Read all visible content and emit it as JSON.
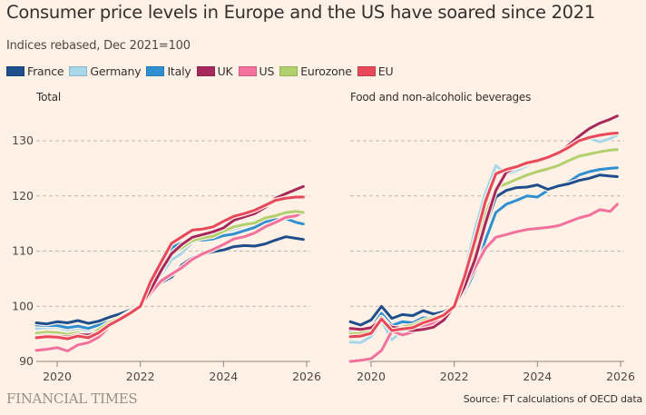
{
  "title": "Consumer price levels in Europe and the US have soared since 2021",
  "subtitle": "Indices rebased, Dec 2021=100",
  "legend": [
    {
      "name": "France",
      "color": "#1f4e8c"
    },
    {
      "name": "Germany",
      "color": "#a6d8ea"
    },
    {
      "name": "Italy",
      "color": "#2f8fd1"
    },
    {
      "name": "UK",
      "color": "#a8285c"
    },
    {
      "name": "US",
      "color": "#f2719d"
    },
    {
      "name": "Eurozone",
      "color": "#b2d06e"
    },
    {
      "name": "EU",
      "color": "#e8485a"
    }
  ],
  "branding": "FINANCIAL TIMES",
  "source": "Source: FT calculations of OECD data",
  "chart_data": [
    {
      "type": "line",
      "title": "Total",
      "xlabel": "",
      "ylabel": "",
      "xlim": [
        2019.5,
        2026.05
      ],
      "ylim": [
        90,
        135
      ],
      "yticks": [
        90,
        100,
        110,
        120,
        130
      ],
      "ytick_labels": [
        "90",
        "100",
        "110",
        "120",
        "130"
      ],
      "xticks": [
        2020,
        2022,
        2024,
        2026
      ],
      "xtick_labels": [
        "2020",
        "2022",
        "2024",
        "2026"
      ],
      "grid": true,
      "x": [
        2019.5,
        2019.75,
        2020.0,
        2020.25,
        2020.5,
        2020.75,
        2021.0,
        2021.25,
        2021.5,
        2021.75,
        2022.0,
        2022.25,
        2022.5,
        2022.75,
        2023.0,
        2023.25,
        2023.5,
        2023.75,
        2024.0,
        2024.25,
        2024.5,
        2024.75,
        2025.0,
        2025.25,
        2025.5,
        2025.75,
        2025.92
      ],
      "series": [
        {
          "name": "France",
          "values": [
            97.0,
            96.8,
            97.2,
            97.0,
            97.4,
            96.9,
            97.3,
            98.0,
            98.6,
            99.3,
            100.0,
            102.2,
            104.3,
            105.3,
            107.5,
            108.8,
            109.4,
            109.9,
            110.2,
            110.8,
            111.0,
            110.9,
            111.3,
            112.0,
            112.6,
            112.3,
            112.1
          ]
        },
        {
          "name": "Germany",
          "values": [
            96.0,
            96.1,
            96.2,
            95.7,
            96.0,
            95.6,
            96.4,
            97.4,
            98.2,
            99.0,
            100.0,
            103.6,
            105.6,
            108.4,
            109.6,
            111.6,
            112.2,
            112.7,
            113.4,
            114.0,
            114.6,
            114.8,
            115.6,
            116.0,
            116.8,
            117.0,
            117.1
          ]
        },
        {
          "name": "Italy",
          "values": [
            96.6,
            96.5,
            96.5,
            96.1,
            96.4,
            96.0,
            96.6,
            97.6,
            98.4,
            99.2,
            100.0,
            103.3,
            106.0,
            110.6,
            111.5,
            111.9,
            112.0,
            112.2,
            112.8,
            113.1,
            113.7,
            114.3,
            115.3,
            115.7,
            115.9,
            115.2,
            114.9
          ]
        },
        {
          "name": "UK",
          "values": [
            94.5,
            94.7,
            94.6,
            94.4,
            94.8,
            94.8,
            95.2,
            96.5,
            97.6,
            98.8,
            100.0,
            103.0,
            106.5,
            109.5,
            111.2,
            112.5,
            113.0,
            113.5,
            114.2,
            115.6,
            116.2,
            116.8,
            117.9,
            119.6,
            120.4,
            121.2,
            121.7
          ]
        },
        {
          "name": "US",
          "values": [
            92.0,
            92.2,
            92.5,
            91.9,
            93.0,
            93.4,
            94.4,
            96.3,
            97.6,
            98.6,
            100.0,
            102.4,
            104.6,
            105.8,
            107.0,
            108.5,
            109.5,
            110.3,
            111.2,
            112.2,
            112.6,
            113.3,
            114.4,
            115.2,
            116.1,
            116.4,
            117.1
          ]
        },
        {
          "name": "Eurozone",
          "values": [
            95.1,
            95.3,
            95.2,
            94.9,
            95.2,
            94.7,
            95.8,
            97.0,
            97.9,
            99.0,
            100.0,
            103.8,
            106.9,
            109.6,
            110.6,
            111.9,
            112.4,
            112.7,
            113.6,
            114.4,
            114.8,
            115.1,
            116.0,
            116.4,
            117.0,
            117.2,
            117.0
          ]
        },
        {
          "name": "EU",
          "values": [
            94.3,
            94.5,
            94.4,
            94.1,
            94.6,
            94.3,
            95.2,
            96.6,
            97.6,
            98.7,
            100.0,
            104.5,
            108.0,
            111.4,
            112.6,
            113.8,
            114.0,
            114.4,
            115.4,
            116.3,
            116.8,
            117.4,
            118.3,
            119.2,
            119.6,
            119.8,
            119.8
          ]
        }
      ]
    },
    {
      "type": "line",
      "title": "Food and non-alcoholic beverages",
      "xlabel": "",
      "ylabel": "",
      "xlim": [
        2019.5,
        2026.05
      ],
      "ylim": [
        90,
        135
      ],
      "yticks": [
        90,
        100,
        110,
        120,
        130
      ],
      "xticks": [
        2020,
        2022,
        2024,
        2026
      ],
      "xtick_labels": [
        "2020",
        "2022",
        "2024",
        "2026"
      ],
      "grid": true,
      "x": [
        2019.5,
        2019.75,
        2020.0,
        2020.25,
        2020.5,
        2020.75,
        2021.0,
        2021.25,
        2021.5,
        2021.75,
        2022.0,
        2022.25,
        2022.5,
        2022.75,
        2023.0,
        2023.25,
        2023.5,
        2023.75,
        2024.0,
        2024.25,
        2024.5,
        2024.75,
        2025.0,
        2025.25,
        2025.5,
        2025.75,
        2025.92
      ],
      "series": [
        {
          "name": "France",
          "values": [
            97.2,
            96.6,
            97.5,
            100.0,
            97.8,
            98.5,
            98.3,
            99.2,
            98.6,
            99.0,
            100.0,
            103.0,
            108.0,
            114.5,
            119.8,
            121.0,
            121.5,
            121.6,
            122.0,
            121.2,
            121.8,
            122.2,
            122.8,
            123.2,
            123.8,
            123.6,
            123.5
          ]
        },
        {
          "name": "Germany",
          "values": [
            93.5,
            93.4,
            94.5,
            97.4,
            93.9,
            95.6,
            95.9,
            97.4,
            98.4,
            98.8,
            100.0,
            106.0,
            114.0,
            120.5,
            125.5,
            124.0,
            124.6,
            125.4,
            126.3,
            126.8,
            127.5,
            128.6,
            130.0,
            130.4,
            129.8,
            130.4,
            131.0
          ]
        },
        {
          "name": "Italy",
          "values": [
            95.5,
            95.5,
            96.0,
            98.7,
            96.5,
            97.2,
            97.0,
            97.9,
            97.8,
            98.6,
            100.0,
            102.5,
            106.5,
            112.0,
            117.0,
            118.5,
            119.2,
            120.0,
            119.8,
            121.0,
            121.8,
            122.5,
            123.8,
            124.4,
            124.8,
            125.0,
            125.1
          ]
        },
        {
          "name": "UK",
          "values": [
            96.0,
            95.8,
            96.1,
            97.6,
            96.2,
            96.0,
            95.6,
            95.8,
            96.2,
            97.5,
            100.0,
            103.6,
            108.5,
            115.0,
            121.0,
            124.3,
            125.2,
            125.8,
            126.2,
            126.8,
            127.8,
            129.2,
            130.8,
            132.2,
            133.2,
            133.9,
            134.5
          ]
        },
        {
          "name": "US",
          "values": [
            90.0,
            90.2,
            90.5,
            92.0,
            95.5,
            94.8,
            95.3,
            96.2,
            97.0,
            98.3,
            100.0,
            103.5,
            107.0,
            110.5,
            112.5,
            113.0,
            113.5,
            113.9,
            114.1,
            114.3,
            114.6,
            115.3,
            116.0,
            116.5,
            117.5,
            117.2,
            118.5
          ]
        },
        {
          "name": "Eurozone",
          "values": [
            95.0,
            95.1,
            95.6,
            98.0,
            96.0,
            96.3,
            96.5,
            97.4,
            97.9,
            98.6,
            100.0,
            104.8,
            110.0,
            116.5,
            121.5,
            122.2,
            123.0,
            123.8,
            124.4,
            124.9,
            125.5,
            126.4,
            127.2,
            127.6,
            128.0,
            128.3,
            128.4
          ]
        },
        {
          "name": "EU",
          "values": [
            94.5,
            94.6,
            95.1,
            97.7,
            95.6,
            95.9,
            96.1,
            97.0,
            97.6,
            98.4,
            100.0,
            105.4,
            112.0,
            119.0,
            124.0,
            124.8,
            125.3,
            126.0,
            126.4,
            127.0,
            127.8,
            128.8,
            130.0,
            130.6,
            131.0,
            131.3,
            131.4
          ]
        }
      ]
    }
  ]
}
